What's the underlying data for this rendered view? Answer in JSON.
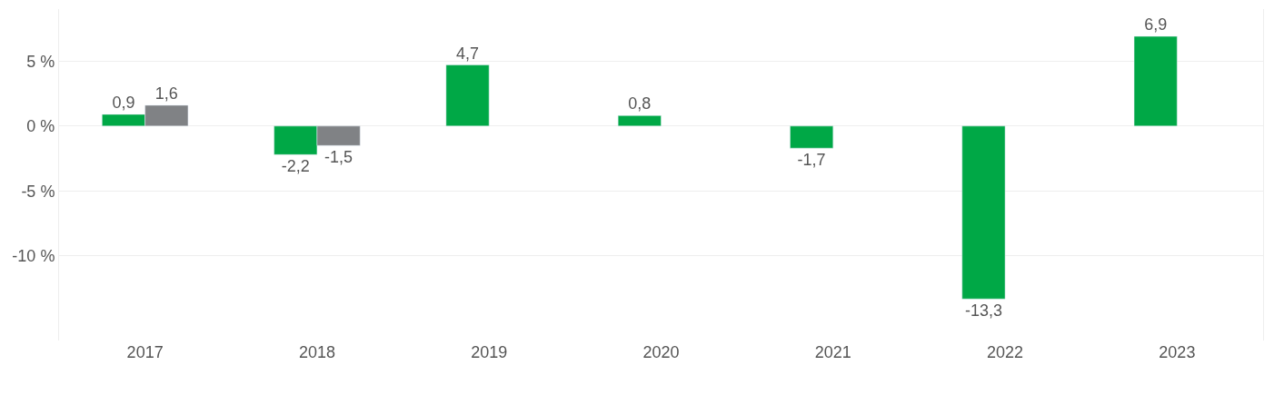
{
  "chart_data": {
    "type": "bar",
    "categories": [
      "2017",
      "2018",
      "2019",
      "2020",
      "2021",
      "2022",
      "2023"
    ],
    "series": [
      {
        "color": "#00a846",
        "values": [
          0.9,
          -2.2,
          4.7,
          0.8,
          -1.7,
          -13.3,
          6.9
        ],
        "value_labels": [
          "0,9",
          "-2,2",
          "4,7",
          "0,8",
          "-1,7",
          "-13,3",
          "6,9"
        ]
      },
      {
        "color": "#808285",
        "values": [
          1.6,
          -1.5,
          null,
          null,
          null,
          null,
          null
        ],
        "value_labels": [
          "1,6",
          "-1,5",
          null,
          null,
          null,
          null,
          null
        ]
      }
    ],
    "yticks": [
      {
        "value": 5,
        "label": "5 %"
      },
      {
        "value": 0,
        "label": "0 %"
      },
      {
        "value": -5,
        "label": "-5 %"
      },
      {
        "value": -10,
        "label": "-10 %"
      }
    ],
    "ylim": [
      -16.5,
      9
    ],
    "grid": "y"
  }
}
